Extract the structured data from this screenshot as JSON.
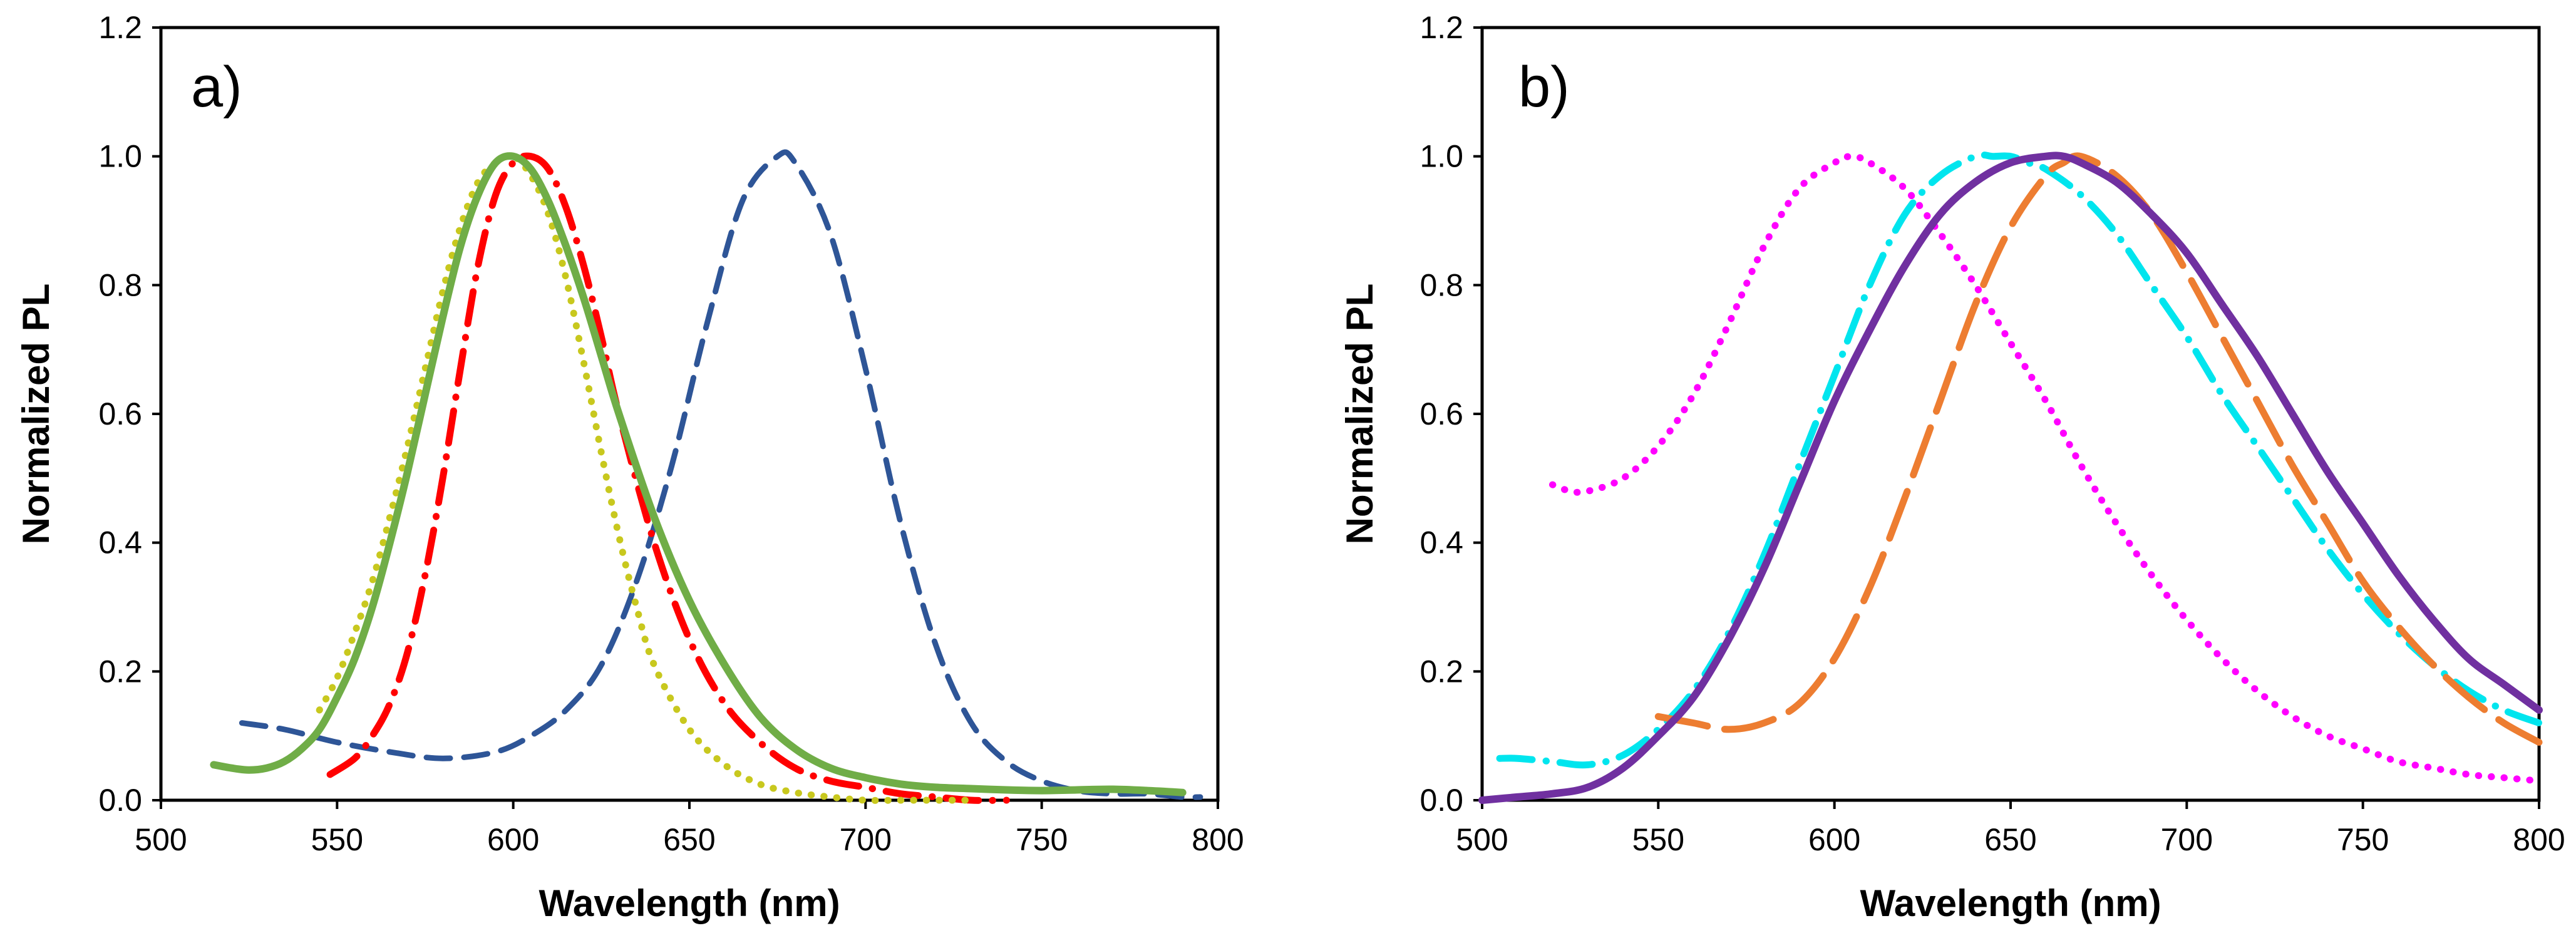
{
  "chart_data": [
    {
      "type": "line",
      "panel_label": "a)",
      "xlabel": "Wavelength (nm)",
      "ylabel": "Normalized PL",
      "xlim": [
        500,
        800
      ],
      "ylim": [
        0,
        1.2
      ],
      "xticks": [
        500,
        550,
        600,
        650,
        700,
        750,
        800
      ],
      "yticks": [
        0.0,
        0.2,
        0.4,
        0.6,
        0.8,
        1.0,
        1.2
      ],
      "xtick_labels": [
        "500",
        "550",
        "600",
        "650",
        "700",
        "750",
        "800"
      ],
      "ytick_labels": [
        "0.0",
        "0.2",
        "0.4",
        "0.6",
        "0.8",
        "1.0",
        "1.2"
      ],
      "grid": false,
      "legend": "none",
      "series": [
        {
          "name": "blue dashed",
          "color": "#2E5597",
          "style": "dashed",
          "x": [
            523,
            535,
            550,
            565,
            580,
            595,
            605,
            615,
            625,
            635,
            645,
            655,
            665,
            675,
            680,
            690,
            700,
            710,
            720,
            730,
            740,
            750,
            760,
            770,
            780,
            790,
            795
          ],
          "y": [
            0.12,
            0.11,
            0.09,
            0.075,
            0.065,
            0.075,
            0.1,
            0.14,
            0.21,
            0.34,
            0.52,
            0.74,
            0.93,
            1.0,
            0.99,
            0.88,
            0.67,
            0.43,
            0.24,
            0.12,
            0.06,
            0.03,
            0.015,
            0.01,
            0.01,
            0.005,
            0.005
          ]
        },
        {
          "name": "red dash-dot",
          "color": "#FF0000",
          "style": "dashdot",
          "x": [
            548,
            555,
            560,
            565,
            570,
            575,
            580,
            585,
            590,
            595,
            600,
            605,
            610,
            615,
            620,
            625,
            630,
            640,
            650,
            660,
            670,
            680,
            690,
            700,
            710,
            720,
            730,
            740
          ],
          "y": [
            0.04,
            0.065,
            0.1,
            0.15,
            0.23,
            0.35,
            0.5,
            0.67,
            0.83,
            0.94,
            0.99,
            1.0,
            0.98,
            0.92,
            0.83,
            0.72,
            0.6,
            0.4,
            0.25,
            0.15,
            0.09,
            0.05,
            0.03,
            0.02,
            0.01,
            0.005,
            0.0,
            0.0
          ]
        },
        {
          "name": "yellow dotted",
          "color": "#C8C81E",
          "style": "dotted",
          "x": [
            545,
            550,
            555,
            560,
            565,
            570,
            575,
            580,
            585,
            590,
            595,
            600,
            605,
            610,
            615,
            620,
            625,
            630,
            635,
            640,
            650,
            660,
            670,
            680,
            690,
            700,
            710,
            720,
            730
          ],
          "y": [
            0.14,
            0.19,
            0.26,
            0.34,
            0.44,
            0.55,
            0.67,
            0.79,
            0.89,
            0.96,
            0.99,
            1.0,
            0.97,
            0.91,
            0.81,
            0.68,
            0.54,
            0.41,
            0.3,
            0.21,
            0.11,
            0.055,
            0.025,
            0.012,
            0.005,
            0.0,
            0.0,
            0.0,
            0.0
          ]
        },
        {
          "name": "green solid",
          "color": "#70AD47",
          "style": "solid",
          "x": [
            515,
            520,
            525,
            530,
            535,
            540,
            545,
            550,
            555,
            560,
            565,
            570,
            575,
            580,
            585,
            590,
            595,
            600,
            605,
            610,
            615,
            620,
            625,
            630,
            640,
            650,
            660,
            670,
            680,
            690,
            700,
            710,
            720,
            730,
            740,
            750,
            760,
            770,
            780,
            790
          ],
          "y": [
            0.055,
            0.05,
            0.047,
            0.05,
            0.06,
            0.08,
            0.11,
            0.16,
            0.22,
            0.3,
            0.4,
            0.51,
            0.63,
            0.75,
            0.86,
            0.94,
            0.99,
            1.0,
            0.98,
            0.93,
            0.86,
            0.78,
            0.69,
            0.6,
            0.44,
            0.31,
            0.21,
            0.13,
            0.08,
            0.05,
            0.035,
            0.025,
            0.02,
            0.018,
            0.016,
            0.015,
            0.016,
            0.017,
            0.015,
            0.012
          ]
        }
      ]
    },
    {
      "type": "line",
      "panel_label": "b)",
      "xlabel": "Wavelength (nm)",
      "ylabel": "Normalized PL",
      "xlim": [
        500,
        800
      ],
      "ylim": [
        0,
        1.2
      ],
      "xticks": [
        500,
        550,
        600,
        650,
        700,
        750,
        800
      ],
      "yticks": [
        0.0,
        0.2,
        0.4,
        0.6,
        0.8,
        1.0,
        1.2
      ],
      "xtick_labels": [
        "500",
        "550",
        "600",
        "650",
        "700",
        "750",
        "800"
      ],
      "ytick_labels": [
        "0.0",
        "0.2",
        "0.4",
        "0.6",
        "0.8",
        "1.0",
        "1.2"
      ],
      "grid": false,
      "legend": "none",
      "series": [
        {
          "name": "magenta dotted",
          "color": "#FF00FF",
          "style": "dotted",
          "x": [
            520,
            525,
            530,
            540,
            550,
            560,
            570,
            580,
            590,
            600,
            605,
            610,
            620,
            630,
            640,
            650,
            660,
            670,
            680,
            690,
            700,
            710,
            720,
            730,
            740,
            750,
            760,
            770,
            780,
            790,
            800
          ],
          "y": [
            0.49,
            0.48,
            0.48,
            0.5,
            0.55,
            0.63,
            0.74,
            0.86,
            0.95,
            0.99,
            1.0,
            0.99,
            0.95,
            0.88,
            0.8,
            0.71,
            0.62,
            0.52,
            0.43,
            0.35,
            0.28,
            0.22,
            0.17,
            0.13,
            0.1,
            0.08,
            0.06,
            0.05,
            0.04,
            0.035,
            0.03
          ]
        },
        {
          "name": "cyan dash-dot",
          "color": "#00E5EE",
          "style": "dashdot",
          "x": [
            505,
            510,
            520,
            530,
            540,
            550,
            560,
            570,
            580,
            590,
            600,
            610,
            620,
            630,
            640,
            645,
            650,
            655,
            660,
            670,
            680,
            690,
            700,
            710,
            720,
            730,
            740,
            750,
            760,
            770,
            780,
            790,
            800
          ],
          "y": [
            0.065,
            0.065,
            0.06,
            0.055,
            0.07,
            0.11,
            0.17,
            0.26,
            0.38,
            0.52,
            0.66,
            0.8,
            0.91,
            0.97,
            1.0,
            1.0,
            1.0,
            0.99,
            0.98,
            0.94,
            0.88,
            0.8,
            0.72,
            0.63,
            0.55,
            0.47,
            0.39,
            0.32,
            0.26,
            0.21,
            0.17,
            0.14,
            0.12
          ]
        },
        {
          "name": "orange long-dash",
          "color": "#ED7D31",
          "style": "longdash",
          "x": [
            550,
            560,
            570,
            580,
            590,
            600,
            610,
            620,
            630,
            640,
            650,
            660,
            665,
            670,
            680,
            690,
            700,
            710,
            720,
            730,
            740,
            750,
            760,
            770,
            780,
            790,
            800
          ],
          "y": [
            0.13,
            0.12,
            0.11,
            0.12,
            0.15,
            0.22,
            0.33,
            0.47,
            0.62,
            0.77,
            0.89,
            0.97,
            0.99,
            1.0,
            0.97,
            0.91,
            0.82,
            0.72,
            0.62,
            0.52,
            0.43,
            0.34,
            0.27,
            0.21,
            0.16,
            0.12,
            0.09
          ]
        },
        {
          "name": "purple solid",
          "color": "#7030A0",
          "style": "solid",
          "x": [
            500,
            510,
            520,
            530,
            540,
            550,
            560,
            570,
            580,
            590,
            600,
            610,
            620,
            630,
            640,
            650,
            660,
            665,
            670,
            680,
            690,
            700,
            710,
            720,
            730,
            740,
            750,
            760,
            770,
            780,
            790,
            800
          ],
          "y": [
            0.0,
            0.005,
            0.01,
            0.02,
            0.05,
            0.1,
            0.16,
            0.25,
            0.36,
            0.49,
            0.62,
            0.73,
            0.83,
            0.91,
            0.96,
            0.99,
            1.0,
            1.0,
            0.99,
            0.96,
            0.91,
            0.85,
            0.77,
            0.69,
            0.6,
            0.51,
            0.43,
            0.35,
            0.28,
            0.22,
            0.18,
            0.14
          ]
        }
      ]
    }
  ]
}
